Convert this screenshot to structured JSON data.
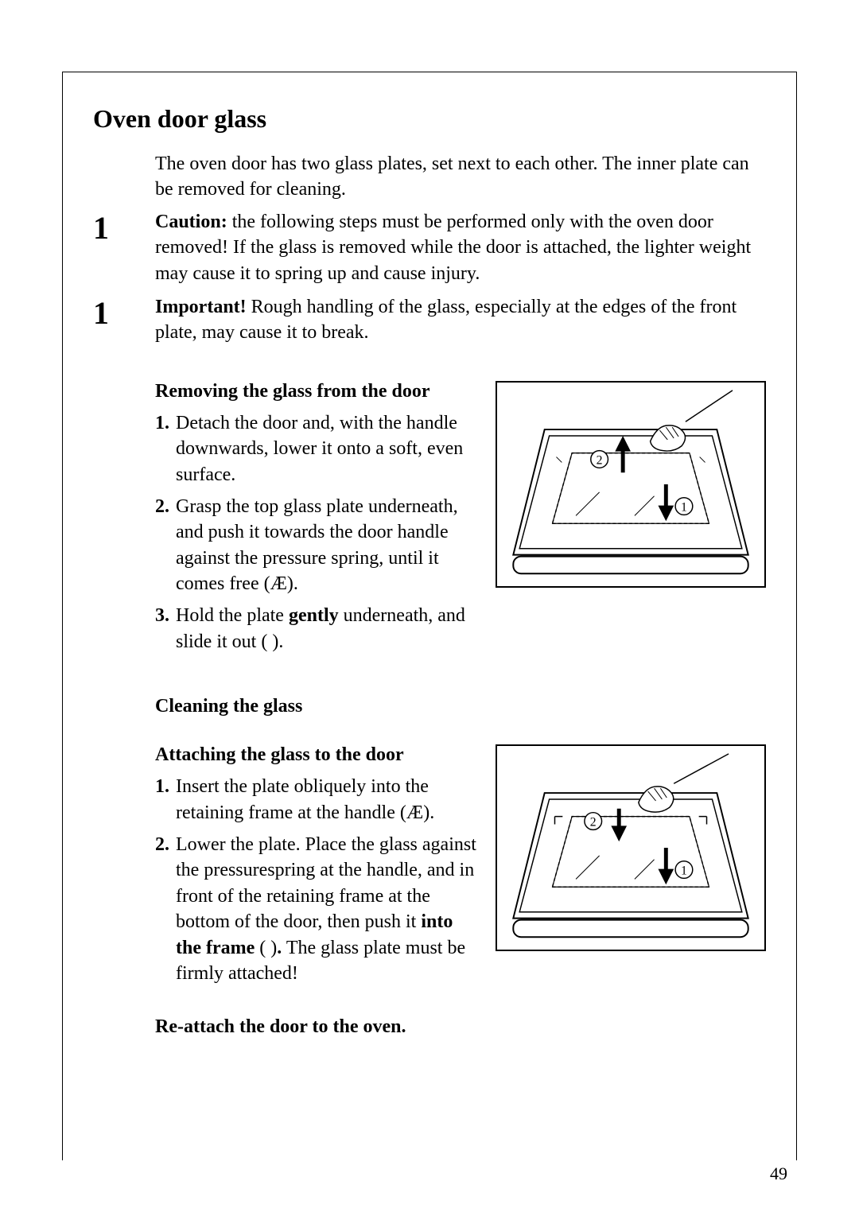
{
  "page_number": "49",
  "section_title": "Oven door glass",
  "intro": "The oven door has two glass plates, set next to each other.  The inner plate can be removed for cleaning.",
  "caution": {
    "marker": "1",
    "label": "Caution:",
    "text": " the following steps must be performed only with the oven door removed!  If the glass is removed while the door is attached, the lighter weight may cause it to spring up and cause injury."
  },
  "important": {
    "marker": "1",
    "label": "Important!",
    "text": " Rough handling of the glass, especially at the edges of the front plate, may cause it to break."
  },
  "removing": {
    "heading": "Removing the glass from the door",
    "steps": [
      "Detach the door and, with the handle downwards, lower it onto a soft, even surface.",
      "Grasp the top glass plate underneath, and push it towards the door handle  against the pressure spring, until it comes free (Æ).",
      "Hold the plate <b>gently</b> underneath, and slide it out (   )."
    ],
    "figure": {
      "label_1": "1",
      "label_2": "2"
    }
  },
  "cleaning_heading": "Cleaning the glass",
  "attaching": {
    "heading": "Attaching the glass to the door",
    "steps": [
      "Insert the plate obliquely into the retaining frame at the handle (Æ).",
      "Lower the plate. Place the glass against the pressurespring at the handle, and in front of the retaining frame at the bottom of the door, then push it <b>into the frame</b> (   )<b>.</b> The glass plate must be firmly attached!"
    ],
    "figure": {
      "label_1": "1",
      "label_2": "2"
    }
  },
  "reattach_heading": "Re-attach the door to the oven.",
  "colors": {
    "text": "#000000",
    "border": "#000000",
    "background": "#ffffff"
  }
}
